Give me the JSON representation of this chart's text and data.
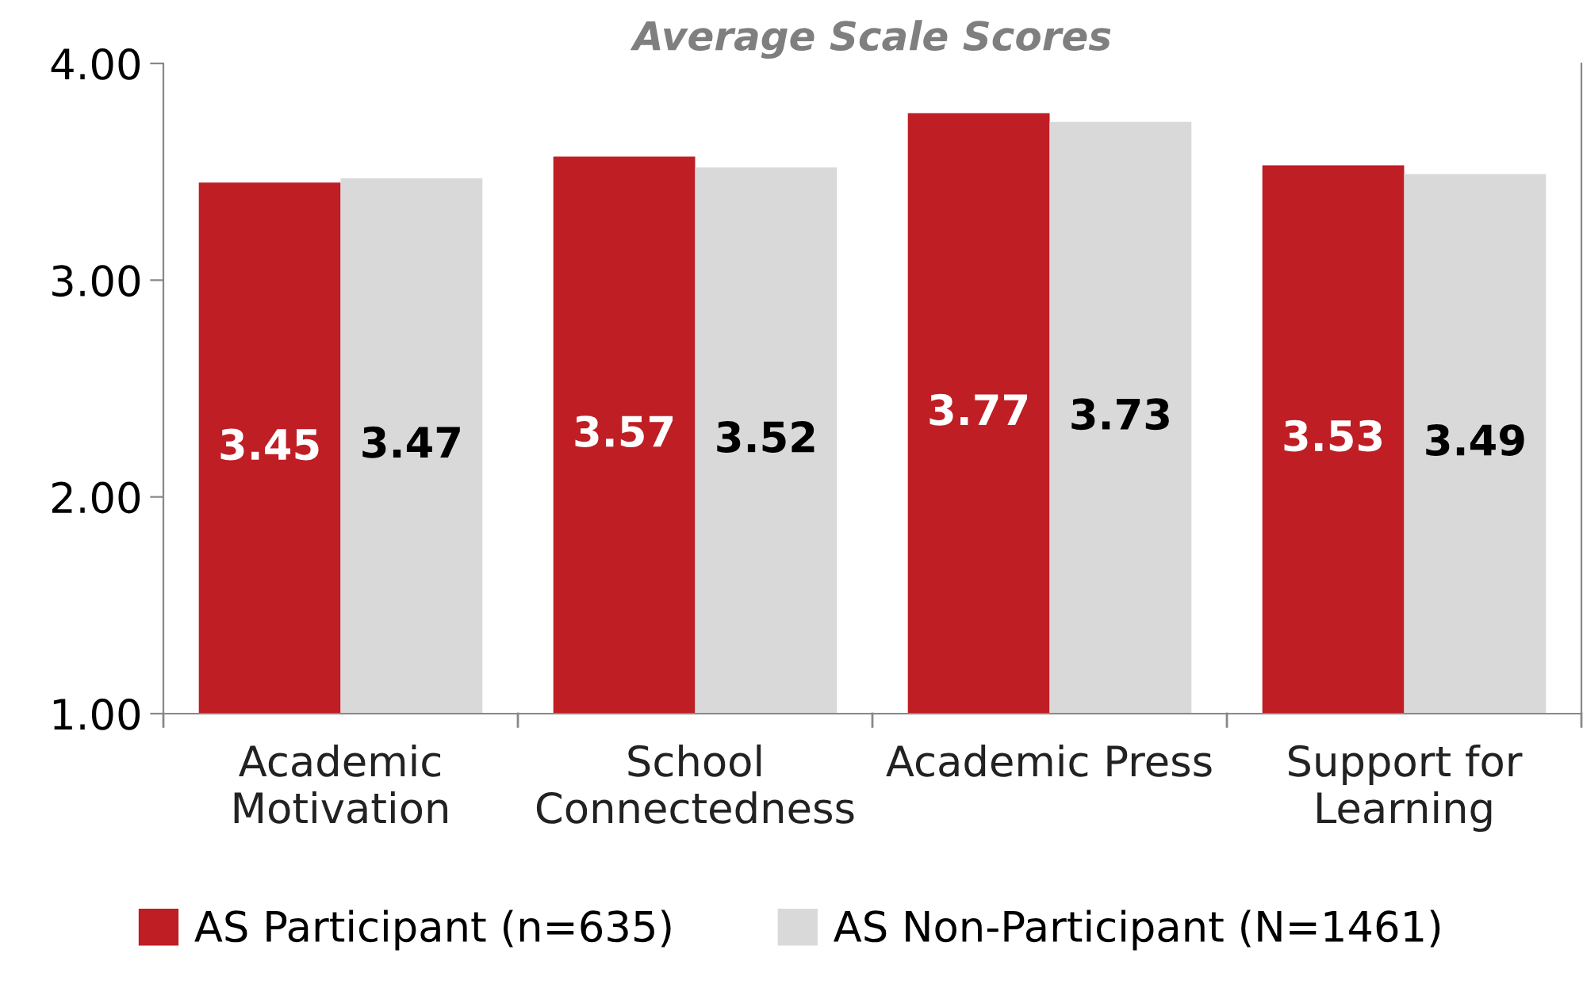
{
  "chart_data": {
    "type": "bar",
    "title": "Average Scale Scores",
    "categories": [
      "Academic\nMotivation",
      "School\nConnectedness",
      "Academic Press",
      "Support for\nLearning"
    ],
    "series": [
      {
        "name": "AS Participant (n=635)",
        "color": "#be1e24",
        "values": [
          3.45,
          3.57,
          3.77,
          3.53
        ]
      },
      {
        "name": "AS Non-Participant (N=1461)",
        "color": "#d9d9d9",
        "values": [
          3.47,
          3.52,
          3.73,
          3.49
        ]
      }
    ],
    "ylim": [
      1,
      4
    ],
    "yticks": [
      {
        "value": 1,
        "label": "1.00"
      },
      {
        "value": 2,
        "label": "2.00"
      },
      {
        "value": 3,
        "label": "3.00"
      },
      {
        "value": 4,
        "label": "4.00"
      }
    ],
    "grid": false,
    "legend": "bottom",
    "data_labels": true
  }
}
